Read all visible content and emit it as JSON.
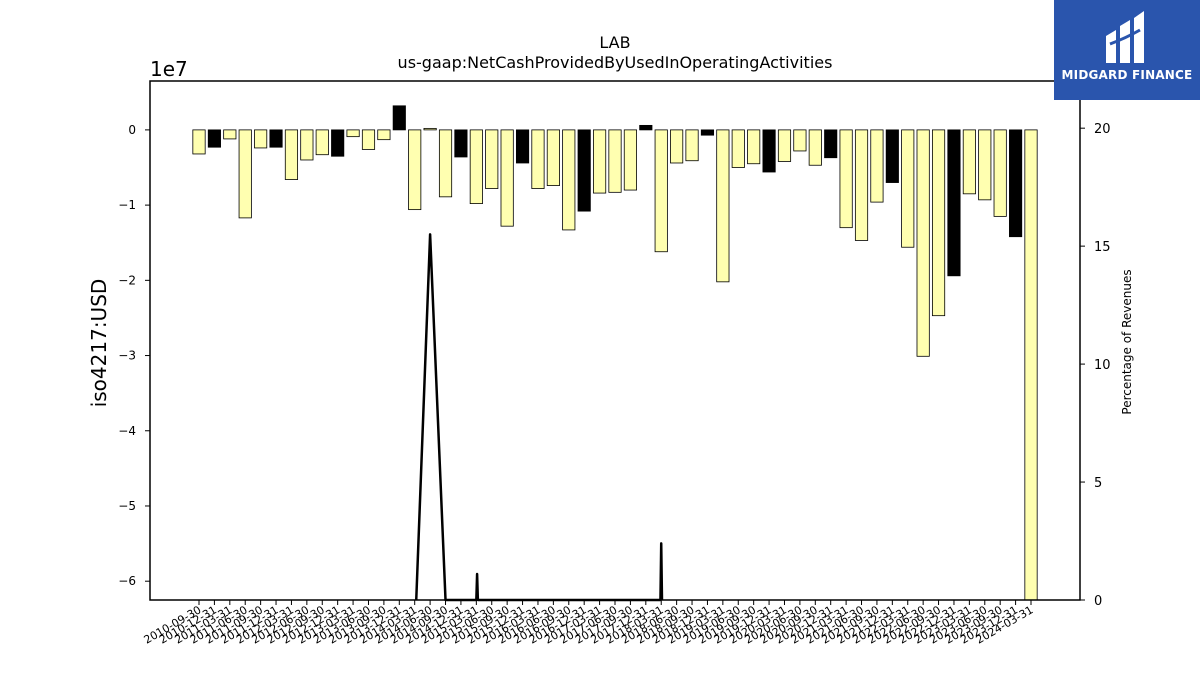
{
  "chart_data": {
    "type": "bar",
    "title": "LAB",
    "subtitle": "us-gaap:NetCashProvidedByUsedInOperatingActivities",
    "ylabel": "iso4217:USD",
    "y_offset_text": "1e7",
    "y2label": "Percentage of Revenues",
    "ylim": [
      -62500000.0,
      6500000.0
    ],
    "y2lim": [
      0,
      22
    ],
    "yticks": [
      "0",
      "−1",
      "−2",
      "−3",
      "−4",
      "−5",
      "−6"
    ],
    "y2ticks": [
      "0",
      "5",
      "10",
      "15",
      "20"
    ],
    "categories": [
      "2010-09-30",
      "2010-12-31",
      "2011-03-31",
      "2011-06-30",
      "2011-09-30",
      "2011-12-31",
      "2012-03-31",
      "2012-06-30",
      "2012-09-30",
      "2012-12-31",
      "2013-03-31",
      "2013-06-30",
      "2013-09-30",
      "2013-12-31",
      "2014-03-31",
      "2014-06-30",
      "2014-09-30",
      "2014-12-31",
      "2015-03-31",
      "2015-06-30",
      "2015-09-30",
      "2015-12-31",
      "2016-03-31",
      "2016-06-30",
      "2016-09-30",
      "2016-12-31",
      "2017-03-31",
      "2017-06-30",
      "2017-09-30",
      "2017-12-31",
      "2018-03-31",
      "2018-06-30",
      "2018-09-30",
      "2018-12-31",
      "2019-03-31",
      "2019-06-30",
      "2019-09-30",
      "2019-12-31",
      "2020-03-31",
      "2020-06-30",
      "2020-09-30",
      "2020-12-31",
      "2021-03-31",
      "2021-06-30",
      "2021-09-30",
      "2021-12-31",
      "2022-03-31",
      "2022-06-30",
      "2022-09-30",
      "2022-12-31",
      "2023-03-31",
      "2023-06-30",
      "2023-09-30",
      "2023-12-31",
      "2024-03-31"
    ],
    "values": [
      -3200000,
      -2300000,
      -1200000,
      -11700000,
      -2400000,
      -2300000,
      -6600000,
      -4000000,
      -3300000,
      -3500000,
      -900000,
      -2600000,
      -1300000,
      3200000,
      -10600000,
      200000,
      -8900000,
      -3600000,
      -9800000,
      -7800000,
      -12800000,
      -4400000,
      -7800000,
      -7400000,
      -13300000,
      -10800000,
      -8400000,
      -8300000,
      -8000000,
      600000,
      -16200000,
      -4400000,
      -4100000,
      -700000,
      -20200000,
      -5000000,
      -4500000,
      -5600000,
      -4200000,
      -2800000,
      -4700000,
      -3700000,
      -13000000,
      -14700000,
      -9600000,
      -7000000,
      -15600000,
      -30100000,
      -24700000,
      -19400000,
      -8500000,
      -9300000,
      -11500000,
      -14200000,
      -62500000
    ],
    "bar_colors": [
      "#ffffb0",
      "#000000",
      "#ffffb0",
      "#ffffb0",
      "#ffffb0",
      "#000000",
      "#ffffb0",
      "#ffffb0",
      "#ffffb0",
      "#000000",
      "#ffffb0",
      "#ffffb0",
      "#ffffb0",
      "#000000",
      "#ffffb0",
      "#ffffb0",
      "#ffffb0",
      "#000000",
      "#ffffb0",
      "#ffffb0",
      "#ffffb0",
      "#000000",
      "#ffffb0",
      "#ffffb0",
      "#ffffb0",
      "#000000",
      "#ffffb0",
      "#ffffb0",
      "#ffffb0",
      "#000000",
      "#ffffb0",
      "#ffffb0",
      "#ffffb0",
      "#000000",
      "#ffffb0",
      "#ffffb0",
      "#ffffb0",
      "#000000",
      "#ffffb0",
      "#ffffb0",
      "#ffffb0",
      "#000000",
      "#ffffb0",
      "#ffffb0",
      "#ffffb0",
      "#000000",
      "#ffffb0",
      "#ffffb0",
      "#ffffb0",
      "#000000",
      "#ffffb0",
      "#ffffb0",
      "#ffffb0",
      "#000000",
      "#ffffb0"
    ],
    "line_points": [
      {
        "x": 14.1,
        "y": 0
      },
      {
        "x": 15,
        "y": 15.5
      },
      {
        "x": 16,
        "y": 0
      },
      {
        "x": 18,
        "y": 0
      },
      {
        "x": 18.05,
        "y": 1.1
      },
      {
        "x": 18.1,
        "y": 0
      },
      {
        "x": 29.95,
        "y": 0
      },
      {
        "x": 30,
        "y": 2.4
      },
      {
        "x": 30.05,
        "y": 0
      }
    ],
    "line_color": "#000000",
    "highlight_color": "#ffffb0",
    "grid": false
  },
  "logo": {
    "text": "MIDGARD FINANCE",
    "bg_color": "#2a55ad",
    "icon": "midgard-logo-icon"
  }
}
